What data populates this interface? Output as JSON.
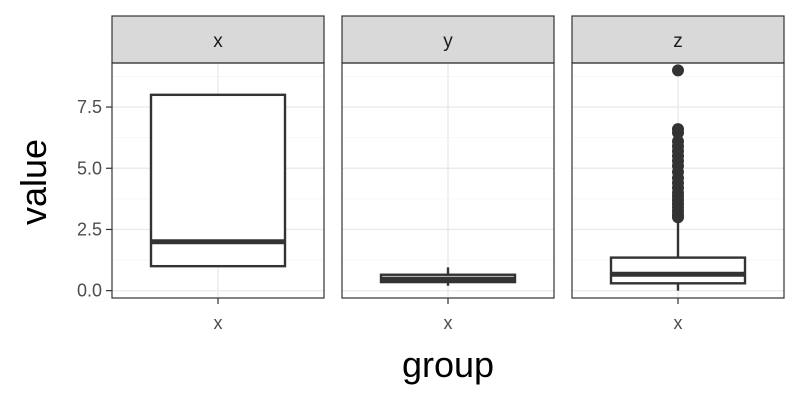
{
  "chart_data": {
    "type": "boxplot",
    "xlabel": "group",
    "ylabel": "value",
    "ylim": [
      -0.3,
      9.3
    ],
    "y_ticks": [
      0.0,
      2.5,
      5.0,
      7.5
    ],
    "y_tick_labels": [
      "0.0",
      "2.5",
      "5.0",
      "7.5"
    ],
    "facets": [
      {
        "strip": "x",
        "category": "x",
        "stats": {
          "min": 1.0,
          "q1": 1.0,
          "median": 2.0,
          "q3": 8.0,
          "max": 8.0
        },
        "outliers": []
      },
      {
        "strip": "y",
        "category": "x",
        "stats": {
          "min": 0.2,
          "q1": 0.35,
          "median": 0.47,
          "q3": 0.65,
          "max": 0.95
        },
        "outliers": []
      },
      {
        "strip": "z",
        "category": "x",
        "stats": {
          "min": 0.0,
          "q1": 0.3,
          "median": 0.67,
          "q3": 1.35,
          "max": 2.9
        },
        "outliers": [
          3.0,
          3.1,
          3.25,
          3.4,
          3.55,
          3.7,
          3.85,
          4.0,
          4.2,
          4.4,
          4.6,
          4.85,
          5.1,
          5.3,
          5.5,
          5.7,
          5.9,
          6.1,
          6.45,
          6.6,
          9.0
        ]
      }
    ],
    "grid": true,
    "legend": "none"
  }
}
